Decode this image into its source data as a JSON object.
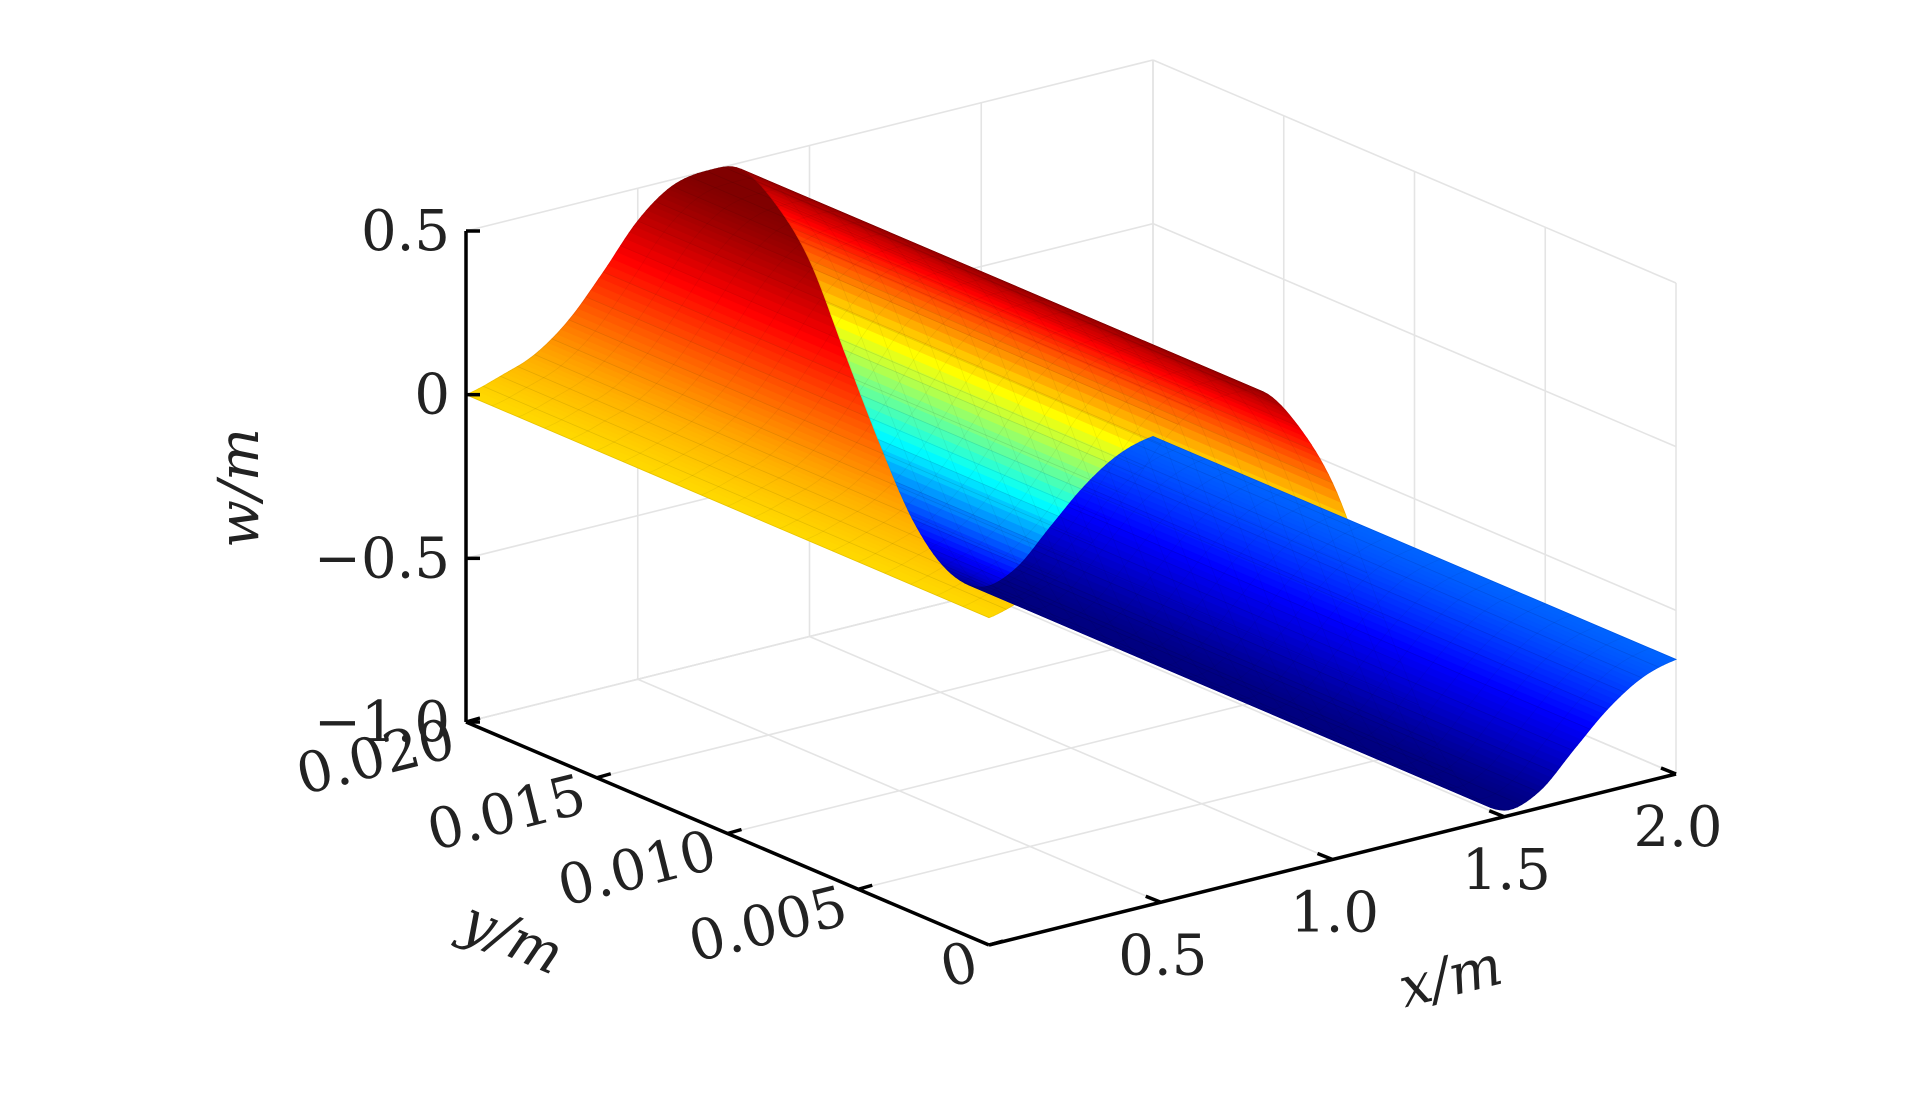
{
  "chart_data": {
    "type": "surface",
    "title": "",
    "xlabel": "x/m",
    "ylabel": "y/m",
    "zlabel": "w/m",
    "xlim": [
      0,
      2.0
    ],
    "ylim": [
      0,
      0.02
    ],
    "zlim": [
      -1.0,
      0.5
    ],
    "x_ticks": [
      0.5,
      1.0,
      1.5,
      2.0
    ],
    "x_tick_labels": [
      "0.5",
      "1.0",
      "1.5",
      "2.0"
    ],
    "y_ticks": [
      0,
      0.005,
      0.01,
      0.015,
      0.02
    ],
    "y_tick_labels": [
      "0",
      "0.005",
      "0.010",
      "0.015",
      "0.020"
    ],
    "z_ticks": [
      -1.0,
      -0.5,
      0,
      0.5
    ],
    "z_tick_labels": [
      "−1.0",
      "−0.5",
      "0",
      "0.5"
    ],
    "grid": true,
    "colormap": "jet",
    "surface_profile": {
      "x": [
        0,
        0.1,
        0.2,
        0.3,
        0.4,
        0.5,
        0.6,
        0.7,
        0.8,
        0.9,
        1.0,
        1.1,
        1.2,
        1.3,
        1.4,
        1.5,
        1.6,
        1.7,
        1.8,
        1.9,
        2.0
      ],
      "w": [
        0,
        0.03,
        0.07,
        0.15,
        0.27,
        0.4,
        0.48,
        0.5,
        0.48,
        0.35,
        0.15,
        -0.15,
        -0.45,
        -0.72,
        -0.9,
        -0.98,
        -0.95,
        -0.85,
        -0.75,
        -0.68,
        -0.65
      ],
      "note_y": "w constant along y"
    }
  }
}
